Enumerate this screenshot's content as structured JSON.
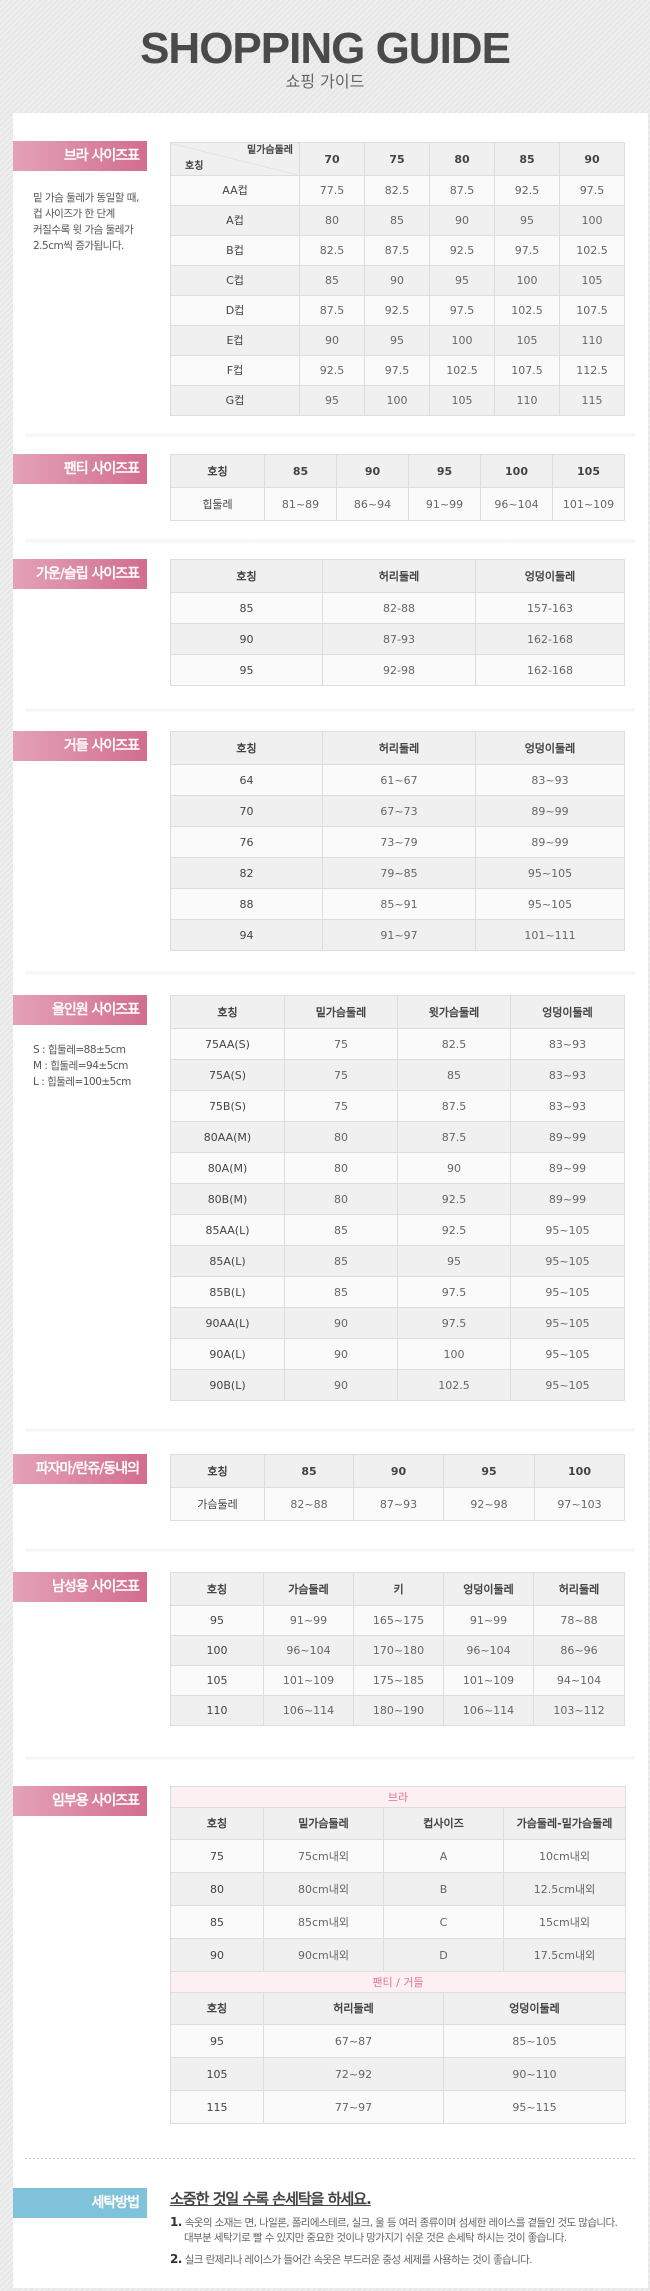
{
  "header": {
    "title": "SHOPPING GUIDE",
    "subtitle": "쇼핑 가이드"
  },
  "bra": {
    "label": "브라 사이즈표",
    "note": [
      "밑 가슴 둘레가 동일할 때,",
      "컵 사이즈가 한 단계",
      "커질수록 윗 가슴 둘레가",
      "2.5cm씩 증가됩니다."
    ],
    "corner_top": "밑가슴둘레",
    "corner_bottom": "호칭",
    "headers": [
      "70",
      "75",
      "80",
      "85",
      "90"
    ],
    "rows": [
      [
        "AA컵",
        "77.5",
        "82.5",
        "87.5",
        "92.5",
        "97.5"
      ],
      [
        "A컵",
        "80",
        "85",
        "90",
        "95",
        "100"
      ],
      [
        "B컵",
        "82.5",
        "87.5",
        "92.5",
        "97.5",
        "102.5"
      ],
      [
        "C컵",
        "85",
        "90",
        "95",
        "100",
        "105"
      ],
      [
        "D컵",
        "87.5",
        "92.5",
        "97.5",
        "102.5",
        "107.5"
      ],
      [
        "E컵",
        "90",
        "95",
        "100",
        "105",
        "110"
      ],
      [
        "F컵",
        "92.5",
        "97.5",
        "102.5",
        "107.5",
        "112.5"
      ],
      [
        "G컵",
        "95",
        "100",
        "105",
        "110",
        "115"
      ]
    ]
  },
  "panty": {
    "label": "팬티 사이즈표",
    "headers": [
      "호칭",
      "85",
      "90",
      "95",
      "100",
      "105"
    ],
    "rows": [
      [
        "힙둘레",
        "81~89",
        "86~94",
        "91~99",
        "96~104",
        "101~109"
      ]
    ]
  },
  "gown": {
    "label": "가운/슬립 사이즈표",
    "headers": [
      "호칭",
      "허리둘레",
      "엉덩이둘레"
    ],
    "rows": [
      [
        "85",
        "82-88",
        "157-163"
      ],
      [
        "90",
        "87-93",
        "162-168"
      ],
      [
        "95",
        "92-98",
        "162-168"
      ]
    ]
  },
  "girdle": {
    "label": "거들 사이즈표",
    "headers": [
      "호칭",
      "허리둘레",
      "엉덩이둘레"
    ],
    "rows": [
      [
        "64",
        "61~67",
        "83~93"
      ],
      [
        "70",
        "67~73",
        "89~99"
      ],
      [
        "76",
        "73~79",
        "89~99"
      ],
      [
        "82",
        "79~85",
        "95~105"
      ],
      [
        "88",
        "85~91",
        "95~105"
      ],
      [
        "94",
        "91~97",
        "101~111"
      ]
    ]
  },
  "allinone": {
    "label": "올인원 사이즈표",
    "note": [
      "S : 힙둘레=88±5cm",
      "M : 힙둘레=94±5cm",
      "L : 힙둘레=100±5cm"
    ],
    "headers": [
      "호칭",
      "밑가슴둘레",
      "윗가슴둘레",
      "엉덩이둘레"
    ],
    "rows": [
      [
        "75AA(S)",
        "75",
        "82.5",
        "83~93"
      ],
      [
        "75A(S)",
        "75",
        "85",
        "83~93"
      ],
      [
        "75B(S)",
        "75",
        "87.5",
        "83~93"
      ],
      [
        "80AA(M)",
        "80",
        "87.5",
        "89~99"
      ],
      [
        "80A(M)",
        "80",
        "90",
        "89~99"
      ],
      [
        "80B(M)",
        "80",
        "92.5",
        "89~99"
      ],
      [
        "85AA(L)",
        "85",
        "92.5",
        "95~105"
      ],
      [
        "85A(L)",
        "85",
        "95",
        "95~105"
      ],
      [
        "85B(L)",
        "85",
        "97.5",
        "95~105"
      ],
      [
        "90AA(L)",
        "90",
        "97.5",
        "95~105"
      ],
      [
        "90A(L)",
        "90",
        "100",
        "95~105"
      ],
      [
        "90B(L)",
        "90",
        "102.5",
        "95~105"
      ]
    ]
  },
  "pajama": {
    "label": "파자마/란쥬/동내의",
    "headers": [
      "호칭",
      "85",
      "90",
      "95",
      "100"
    ],
    "rows": [
      [
        "가슴둘레",
        "82~88",
        "87~93",
        "92~98",
        "97~103"
      ]
    ]
  },
  "men": {
    "label": "남성용 사이즈표",
    "headers": [
      "호칭",
      "가슴둘레",
      "키",
      "엉덩이둘레",
      "허리둘레"
    ],
    "rows": [
      [
        "95",
        "91~99",
        "165~175",
        "91~99",
        "78~88"
      ],
      [
        "100",
        "96~104",
        "170~180",
        "96~104",
        "86~96"
      ],
      [
        "105",
        "101~109",
        "175~185",
        "101~109",
        "94~104"
      ],
      [
        "110",
        "106~114",
        "180~190",
        "106~114",
        "103~112"
      ]
    ]
  },
  "maternity": {
    "label": "임부용 사이즈표",
    "bra": {
      "title": "브라",
      "headers": [
        "호칭",
        "밑가슴둘레",
        "컵사이즈",
        "가슴둘레-밑가슴둘레"
      ],
      "rows": [
        [
          "75",
          "75cm내외",
          "A",
          "10cm내외"
        ],
        [
          "80",
          "80cm내외",
          "B",
          "12.5cm내외"
        ],
        [
          "85",
          "85cm내외",
          "C",
          "15cm내외"
        ],
        [
          "90",
          "90cm내외",
          "D",
          "17.5cm내외"
        ]
      ]
    },
    "panty": {
      "title": "팬티 / 거들",
      "headers": [
        "호칭",
        "허리둘레",
        "엉덩이둘레"
      ],
      "rows": [
        [
          "95",
          "67~87",
          "85~105"
        ],
        [
          "105",
          "72~92",
          "90~110"
        ],
        [
          "115",
          "77~97",
          "95~115"
        ]
      ]
    }
  },
  "washing": {
    "label": "세탁방법",
    "title": "소중한 것일 수록 손세탁을 하세요.",
    "items": [
      {
        "num": "1.",
        "lines": [
          "속옷의 소재는 면, 나일론, 폴리에스테르, 실크, 울 등 여러 종류이며 섬세한 레이스를 곁들인 것도 많습니다.",
          "대부분 세탁기로 빨 수 있지만 중요한 것이나 망가지기 쉬운 것은 손세탁 하시는 것이 좋습니다."
        ]
      },
      {
        "num": "2.",
        "lines": [
          "실크 란제리나 레이스가 들어간 속옷은 부드러운 중성 세제를 사용하는 것이 좋습니다."
        ]
      }
    ]
  },
  "colors": {
    "label_pink": "#d26d90",
    "label_blue": "#80c2da",
    "subheader_pink": "#d9779a"
  }
}
